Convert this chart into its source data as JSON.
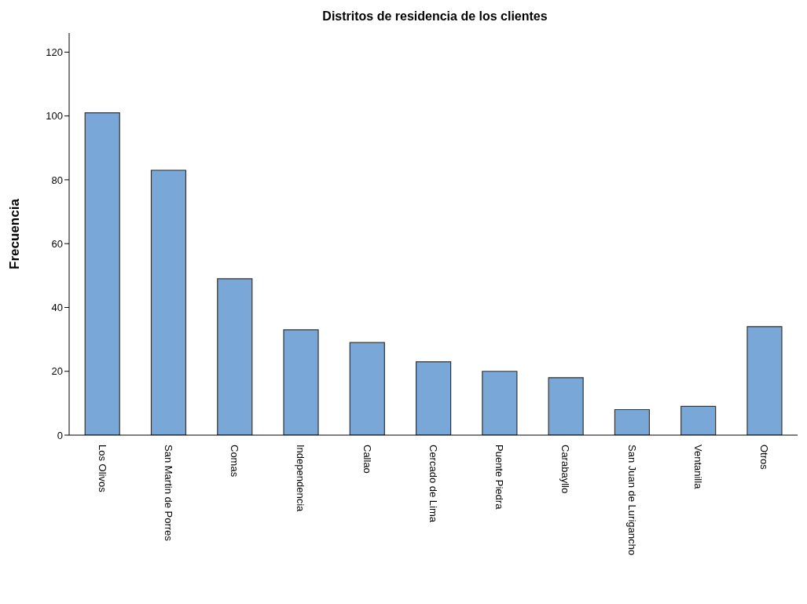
{
  "chart_data": {
    "type": "bar",
    "title": "Distritos de residencia de los clientes",
    "ylabel": "Frecuencia",
    "categories": [
      "Los Olivos",
      "San Martin de Porres",
      "Comas",
      "Independencia",
      "Callao",
      "Cercado de Lima",
      "Puente Piedra",
      "Carabayllo",
      "San Juan de Lurigancho",
      "Ventanilla",
      "Otros"
    ],
    "values": [
      101,
      83,
      49,
      33,
      29,
      23,
      20,
      18,
      8,
      9,
      34
    ],
    "color": "#79a8d8",
    "ylim": [
      0,
      126
    ],
    "yticks": [
      0,
      20,
      40,
      60,
      80,
      100,
      120
    ]
  }
}
